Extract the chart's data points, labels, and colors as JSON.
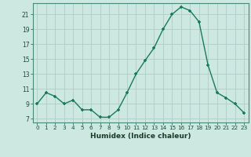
{
  "x": [
    0,
    1,
    2,
    3,
    4,
    5,
    6,
    7,
    8,
    9,
    10,
    11,
    12,
    13,
    14,
    15,
    16,
    17,
    18,
    19,
    20,
    21,
    22,
    23
  ],
  "y": [
    9,
    10.5,
    10,
    9,
    9.5,
    8.2,
    8.2,
    7.2,
    7.2,
    8.2,
    10.5,
    13,
    14.8,
    16.5,
    19,
    21,
    22,
    21.5,
    20,
    14.2,
    10.5,
    9.8,
    9,
    7.8
  ],
  "line_color": "#1a7a5a",
  "marker_color": "#1a7a5a",
  "bg_color": "#cce8e0",
  "grid_color": "#b0ccc8",
  "xlabel": "Humidex (Indice chaleur)",
  "ylim": [
    6.5,
    22.5
  ],
  "xlim": [
    -0.5,
    23.5
  ],
  "yticks": [
    7,
    9,
    11,
    13,
    15,
    17,
    19,
    21
  ],
  "xticks": [
    0,
    1,
    2,
    3,
    4,
    5,
    6,
    7,
    8,
    9,
    10,
    11,
    12,
    13,
    14,
    15,
    16,
    17,
    18,
    19,
    20,
    21,
    22,
    23
  ],
  "xtick_labels": [
    "0",
    "1",
    "2",
    "3",
    "4",
    "5",
    "6",
    "7",
    "8",
    "9",
    "10",
    "11",
    "12",
    "13",
    "14",
    "15",
    "16",
    "17",
    "18",
    "19",
    "20",
    "21",
    "22",
    "23"
  ]
}
